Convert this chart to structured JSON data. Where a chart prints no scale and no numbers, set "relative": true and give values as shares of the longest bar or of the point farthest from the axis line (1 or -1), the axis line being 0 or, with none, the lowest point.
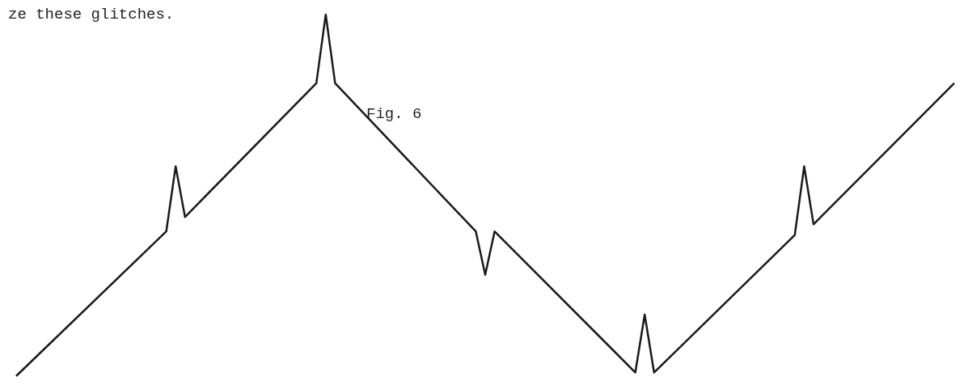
{
  "chart_data": {
    "type": "line",
    "title": "Fig. 6",
    "annotations": [
      "ze these glitches."
    ],
    "relative": true,
    "categories": [
      null,
      null,
      null,
      null,
      null,
      null,
      null,
      null,
      null,
      null,
      null,
      null,
      null,
      null,
      null,
      null,
      null,
      null,
      null,
      null,
      null,
      null,
      null,
      null,
      null,
      null,
      null,
      null,
      null,
      null,
      null,
      null,
      null,
      null,
      null,
      null,
      null,
      null,
      null,
      null,
      null,
      null,
      null,
      null,
      null,
      null,
      null,
      null,
      null,
      null,
      null,
      null,
      null,
      null,
      null,
      null,
      null,
      null,
      null,
      null,
      null,
      null,
      null,
      null,
      null,
      null,
      null,
      null,
      null,
      null,
      null,
      null,
      null,
      null,
      null,
      null,
      null,
      null,
      null,
      null,
      null,
      null,
      null,
      null,
      null,
      null,
      null,
      null,
      null,
      null,
      null,
      null,
      null,
      null,
      null,
      null,
      null,
      null,
      null,
      null,
      null
    ],
    "values": [
      0,
      null,
      null,
      null,
      null,
      null,
      null,
      null,
      null,
      null,
      null,
      null,
      null,
      null,
      null,
      null,
      0.4,
      0.58,
      0.44,
      null,
      null,
      null,
      null,
      null,
      null,
      null,
      null,
      null,
      null,
      null,
      null,
      null,
      0.81,
      1,
      0.81,
      null,
      null,
      null,
      null,
      null,
      null,
      null,
      null,
      null,
      null,
      null,
      null,
      null,
      null,
      0.4,
      0.28,
      0.4,
      null,
      null,
      null,
      null,
      null,
      null,
      null,
      null,
      null,
      null,
      null,
      null,
      null,
      null,
      0.01,
      0.17,
      0.01,
      null,
      null,
      null,
      null,
      null,
      null,
      null,
      null,
      null,
      null,
      null,
      null,
      null,
      null,
      0.39,
      0.58,
      0.42,
      null,
      null,
      null,
      null,
      null,
      null,
      null,
      null,
      null,
      null,
      null,
      null,
      null,
      null,
      0.81
    ],
    "color": "#1a1a1a",
    "grid": false,
    "marker": "none",
    "line_style": "solid"
  }
}
